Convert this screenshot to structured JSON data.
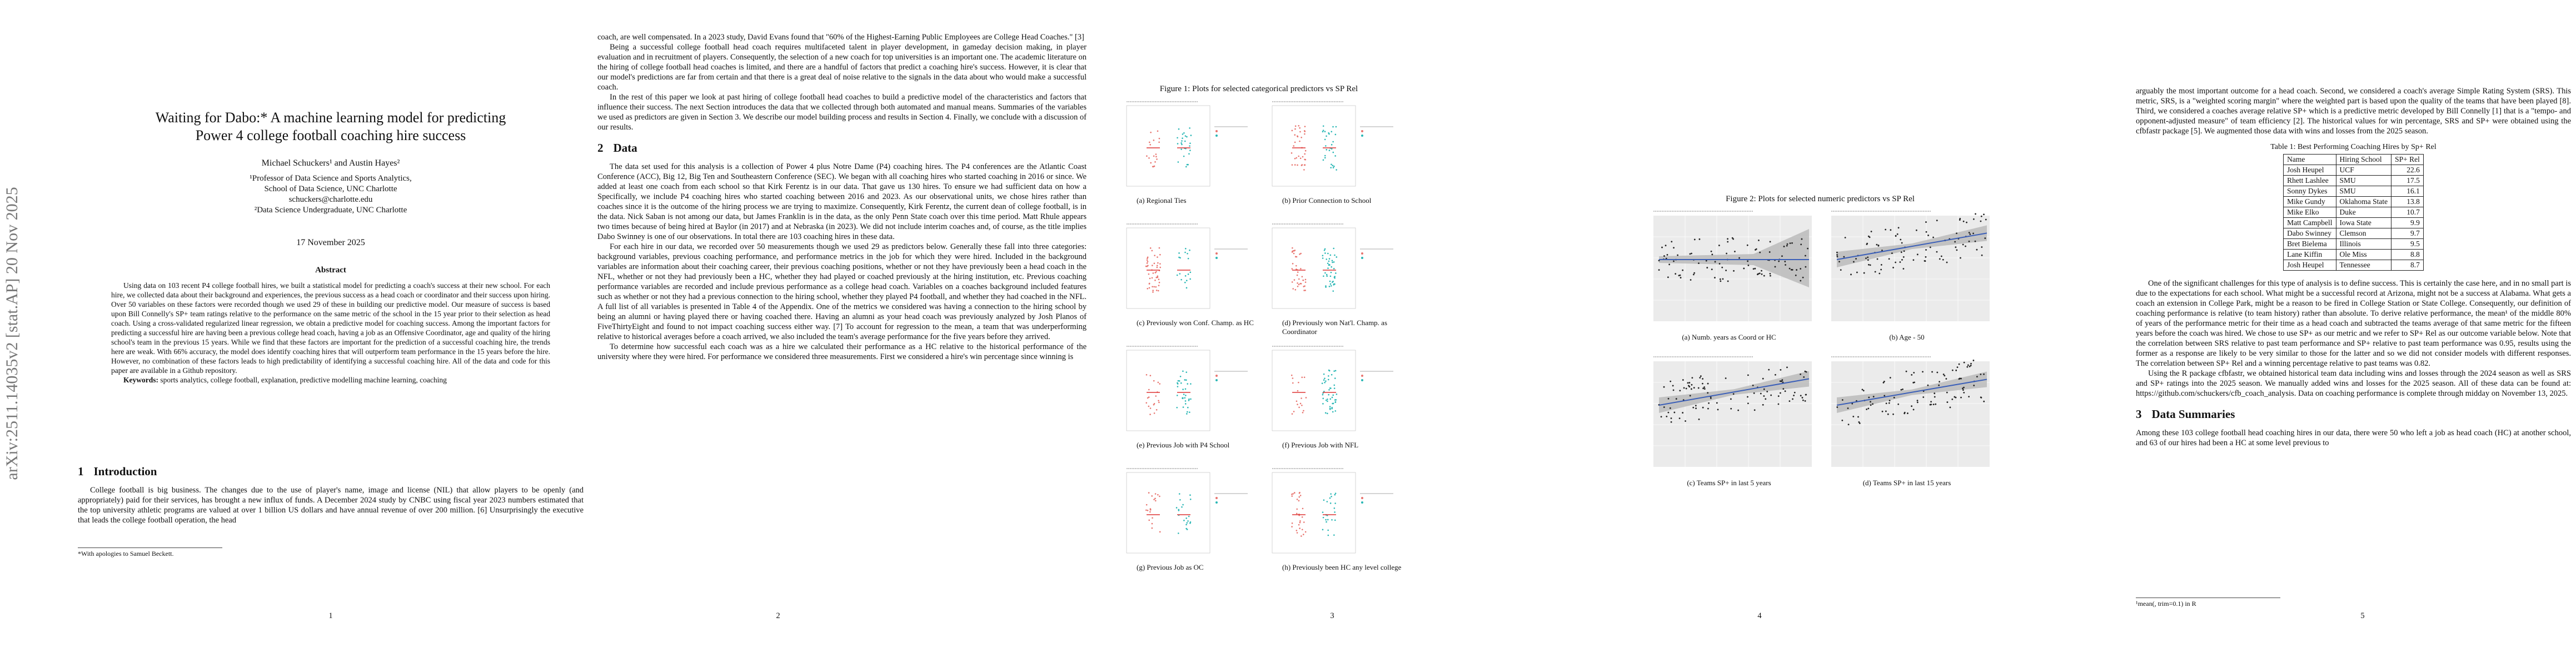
{
  "arxiv_stamp": "arXiv:2511.14035v2  [stat.AP]  20 Nov 2025",
  "pages": [
    {
      "title": [
        "Waiting for Dabo:* A machine learning model for predicting",
        "Power 4 college football coaching hire success"
      ],
      "authors": "Michael Schuckers¹ and Austin Hayes²",
      "affiliations": [
        "¹Professor of Data Science and Sports Analytics,",
        "School of Data Science, UNC Charlotte",
        "schuckers@charlotte.edu",
        "²Data Science Undergraduate, UNC Charlotte"
      ],
      "date": "17 November 2025",
      "abstract_heading": "Abstract",
      "abstract": "Using data on 103 recent P4 college football hires, we built a statistical model for predicting a coach's success at their new school. For each hire, we collected data about their background and experiences, the previous success as a head coach or coordinator and their success upon hiring. Over 50 variables on these factors were recorded though we used 29 of these in building our predictive model. Our measure of success is based upon Bill Connelly's SP+ team ratings relative to the performance on the same metric of the school in the 15 year prior to their selection as head coach. Using a cross-validated regularized linear regression, we obtain a predictive model for coaching success. Among the important factors for predicting a successful hire are having been a previous college head coach, having a job as an Offensive Coordinator, age and quality of the hiring school's team in the previous 15 years. While we find that these factors are important for the prediction of a successful coaching hire, the trends here are weak. With 66% accuracy, the model does identify coaching hires that will outperform team performance in the 15 years before the hire. However, no combination of these factors leads to high predictability of identifying a successful coaching hire. All of the data and code for this paper are available in a Github repository.",
      "keywords_label": "Keywords:",
      "keywords": "sports analytics, college football, explanation, predictive modelling machine learning, coaching",
      "section": {
        "number": "1",
        "title": "Introduction"
      },
      "paragraphs": [
        "College football is big business. The changes due to the use of player's name, image and license (NIL) that allow players to be openly (and appropriately) paid for their services, has brought a new influx of funds. A December 2024 study by CNBC using fiscal year 2023 numbers estimated that the top university athletic programs are valued at over 1 billion US dollars and have annual revenue of over 200 million. [6] Unsurprisingly the executive that leads the college football operation, the head"
      ],
      "footnote": "*With apologies to Samuel Beckett.",
      "page_number": "1"
    },
    {
      "paragraphs_before": [
        "coach, are well compensated. In a 2023 study, David Evans found that \"60% of the Highest-Earning Public Employees are College Head Coaches.\" [3]",
        "Being a successful college football head coach requires multifaceted talent in player development, in gameday decision making, in player evaluation and in recruitment of players. Consequently, the selection of a new coach for top universities is an important one. The academic literature on the hiring of college football head coaches is limited, and there are a handful of factors that predict a coaching hire's success. However, it is clear that our model's predictions are far from certain and that there is a great deal of noise relative to the signals in the data about who would make a successful coach.",
        "In the rest of this paper we look at past hiring of college football head coaches to build a predictive model of the characteristics and factors that influence their success. The next Section introduces the data that we collected through both automated and manual means. Summaries of the variables we used as predictors are given in Section 3. We describe our model building process and results in Section 4. Finally, we conclude with a discussion of our results."
      ],
      "section": {
        "number": "2",
        "title": "Data"
      },
      "paragraphs": [
        "The data set used for this analysis is a collection of Power 4 plus Notre Dame (P4) coaching hires. The P4 conferences are the Atlantic Coast Conference (ACC), Big 12, Big Ten and Southeastern Conference (SEC). We began with all coaching hires who started coaching in 2016 or since. We added at least one coach from each school so that Kirk Ferentz is in our data. That gave us 130 hires. To ensure we had sufficient data on how a Specifically, we include P4 coaching hires who started coaching between 2016 and 2023. As our observational units, we chose hires rather than coaches since it is the outcome of the hiring process we are trying to maximize. Consequently, Kirk Ferentz, the current dean of college football, is in the data. Nick Saban is not among our data, but James Franklin is in the data, as the only Penn State coach over this time period. Matt Rhule appears two times because of being hired at Baylor (in 2017) and at Nebraska (in 2023). We did not include interim coaches and, of course, as the title implies Dabo Swinney is one of our observations. In total there are 103 coaching hires in these data.",
        "For each hire in our data, we recorded over 50 measurements though we used 29 as predictors below. Generally these fall into three categories: background variables, previous coaching performance, and performance metrics in the job for which they were hired. Included in the background variables are information about their coaching career, their previous coaching positions, whether or not they have previously been a head coach in the NFL, whether or not they had previously been a HC, whether they had played or coached previously at the hiring institution, etc. Previous coaching performance variables are recorded and include previous performance as a college head coach. Variables on a coaches background included features such as whether or not they had a previous connection to the hiring school, whether they played P4 football, and whether they had coached in the NFL. A full list of all variables is presented in Table 4 of the Appendix. One of the metrics we considered was having a connection to the hiring school by being an alumni or having played there or having coached there. Having an alumni as your head coach was previously analyzed by Josh Planos of FiveThirtyEight and found to not impact coaching success either way. [7] To account for regression to the mean, a team that was underperforming relative to historical averages before a coach arrived, we also included the team's average performance for the five years before they arrived.",
        "To determine how successful each coach was as a hire we calculated their performance as a HC relative to the historical performance of the university where they were hired. For performance we considered three measurements. First we considered a hire's win percentage since winning is"
      ],
      "page_number": "2"
    },
    {
      "figure": {
        "title": "Figure 1: Plots for selected categorical predictors vs SP Rel",
        "captions": [
          "(a) Regional Ties",
          "(b) Prior Connection to School",
          "(c) Previously won Conf. Champ. as HC",
          "(d) Previously won Nat'l. Champ. as Coordinator",
          "(e) Previous Job with P4 School",
          "(f) Previous Job with NFL",
          "(g) Previous Job as OC",
          "(h) Previously been HC any level college"
        ]
      },
      "page_number": "3"
    },
    {
      "figure": {
        "title": "Figure 2: Plots for selected numeric predictors vs SP Rel",
        "captions": [
          "(a) Numb. years as Coord or HC",
          "(b) Age - 50",
          "(c) Teams SP+ in last 5 years",
          "(d) Teams SP+ in last 15 years"
        ]
      },
      "page_number": "4"
    },
    {
      "paragraphs_before": [
        "arguably the most important outcome for a head coach. Second, we considered a coach's average Simple Rating System (SRS). This metric, SRS, is a \"weighted scoring margin\" where the weighted part is based upon the quality of the teams that have been played [8]. Third, we considered a coaches average relative SP+ which is a predictive metric developed by Bill Connelly [1] that is a \"tempo- and opponent-adjusted measure\" of team efficiency [2]. The historical values for win percentage, SRS and SP+ were obtained using the cfbfastr package [5]. We augmented those data with wins and losses from the 2025 season."
      ],
      "table": {
        "caption": "Table 1: Best Performing Coaching Hires by Sp+ Rel",
        "columns": [
          "Name",
          "Hiring School",
          "SP+ Rel"
        ],
        "rows": [
          [
            "Josh Heupel",
            "UCF",
            22.6
          ],
          [
            "Rhett Lashlee",
            "SMU",
            17.5
          ],
          [
            "Sonny Dykes",
            "SMU",
            16.1
          ],
          [
            "Mike Gundy",
            "Oklahoma State",
            13.8
          ],
          [
            "Mike Elko",
            "Duke",
            10.7
          ],
          [
            "Matt Campbell",
            "Iowa State",
            9.9
          ],
          [
            "Dabo Swinney",
            "Clemson",
            9.7
          ],
          [
            "Bret Bielema",
            "Illinois",
            9.5
          ],
          [
            "Lane Kiffin",
            "Ole Miss",
            8.8
          ],
          [
            "Josh Heupel",
            "Tennessee",
            8.7
          ]
        ]
      },
      "paragraphs": [
        "One of the significant challenges for this type of analysis is to define success. This is certainly the case here, and in no small part is due to the expectations for each school. What might be a successful record at Arizona, might not be a success at Alabama. What gets a coach an extension in College Park, might be a reason to be fired in College Station or State College. Consequently, our definition of coaching performance is relative (to team history) rather than absolute. To derive relative performance, the mean¹ of the middle 80% of years of the performance metric for their time as a head coach and subtracted the teams average of that same metric for the fifteen years before the coach was hired. We chose to use SP+ as our metric and we refer to SP+ Rel as our outcome variable below. Note that the correlation between SRS relative to past team performance and SP+ relative to past team performance was 0.95, results using the former as a response are likely to be very similar to those for the latter and so we did not consider models with different responses. The correlation between SP+ Rel and a winning percentage relative to past teams was 0.82.",
        "Using the R package cfbfastr, we obtained historical team data including wins and losses through the 2024 season as well as SRS and SP+ ratings into the 2025 season. We manually added wins and losses for the 2025 season. All of these data can be found at: https://github.com/schuckers/cfb_coach_analysis. Data on coaching performance is complete through midday on November 13, 2025."
      ],
      "section": {
        "number": "3",
        "title": "Data Summaries"
      },
      "paragraphs_after": [
        "Among these 103 college football head coaching hires in our data, there were 50 who left a job as head coach (HC) at another school, and 63 of our hires had been a HC at some level previous to"
      ],
      "footnote": "¹mean(, trim=0.1) in R",
      "page_number": "5"
    }
  ]
}
